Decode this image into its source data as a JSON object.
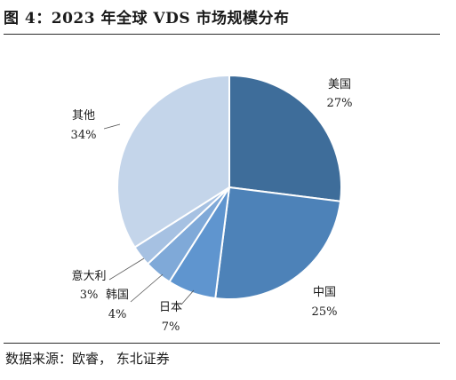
{
  "figure": {
    "title": "图 4：2023 年全球 VDS 市场规模分布",
    "source": "数据来源：欧睿， 东北证券"
  },
  "chart_data": {
    "type": "pie",
    "title": "",
    "unit": "%",
    "slices": [
      {
        "label": "美国",
        "value": 27,
        "display": "27%",
        "color": "#3e6d9a"
      },
      {
        "label": "中国",
        "value": 25,
        "display": "25%",
        "color": "#4d82b8"
      },
      {
        "label": "日本",
        "value": 7,
        "display": "7%",
        "color": "#5f95cf"
      },
      {
        "label": "韩国",
        "value": 4,
        "display": "4%",
        "color": "#7fa9d8"
      },
      {
        "label": "意大利",
        "value": 3,
        "display": "3%",
        "color": "#a6c1e2"
      },
      {
        "label": "其他",
        "value": 34,
        "display": "34%",
        "color": "#c4d5ea"
      }
    ],
    "start": "12 o'clock",
    "direction": "clockwise"
  }
}
